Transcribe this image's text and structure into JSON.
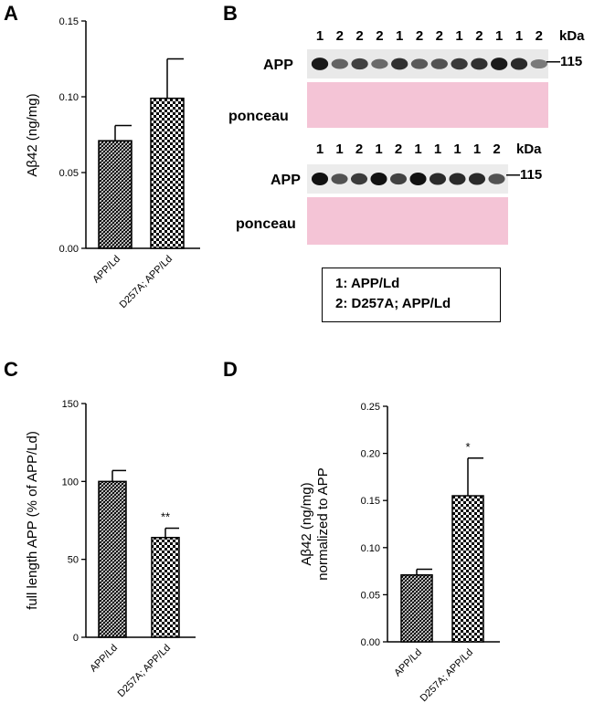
{
  "panels": {
    "a": {
      "letter": "A"
    },
    "b": {
      "letter": "B"
    },
    "c": {
      "letter": "C"
    },
    "d": {
      "letter": "D"
    }
  },
  "blot": {
    "kda": "kDa",
    "marker": "—115",
    "app_label": "APP",
    "ponceau_label": "ponceau",
    "upper_lanes": [
      "1",
      "2",
      "2",
      "2",
      "1",
      "2",
      "2",
      "1",
      "2",
      "1",
      "1",
      "2"
    ],
    "lower_lanes": [
      "1",
      "1",
      "2",
      "1",
      "2",
      "1",
      "1",
      "1",
      "1",
      "2"
    ],
    "upper_band_intensity": [
      0.95,
      0.5,
      0.7,
      0.45,
      0.8,
      0.55,
      0.6,
      0.75,
      0.8,
      0.95,
      0.85,
      0.35
    ],
    "lower_band_intensity": [
      1.0,
      0.6,
      0.75,
      1.0,
      0.7,
      1.0,
      0.85,
      0.85,
      0.85,
      0.6
    ],
    "colors": {
      "ponceau": "#f4c4d6",
      "band": "#111111"
    }
  },
  "legend": {
    "line1": "1: APP/Ld",
    "line2": "2: D257A; APP/Ld"
  },
  "chart_data": [
    {
      "id": "a",
      "type": "bar",
      "categories": [
        "APP/Ld",
        "D257A; APP/Ld"
      ],
      "values": [
        0.071,
        0.099
      ],
      "errors": [
        0.01,
        0.026
      ],
      "ylabel": "Aβ42 (ng/mg)",
      "ylim": [
        0,
        0.15
      ],
      "yticks": [
        "0.00",
        "0.05",
        "0.10",
        "0.15"
      ],
      "significance": [
        "",
        ""
      ]
    },
    {
      "id": "c",
      "type": "bar",
      "categories": [
        "APP/Ld",
        "D257A; APP/Ld"
      ],
      "values": [
        100,
        64
      ],
      "errors": [
        7,
        6
      ],
      "ylabel": "full length APP (% of APP/Ld)",
      "ylim": [
        0,
        150
      ],
      "yticks": [
        "0",
        "50",
        "100",
        "150"
      ],
      "significance": [
        "",
        "**"
      ]
    },
    {
      "id": "d",
      "type": "bar",
      "categories": [
        "APP/Ld",
        "D257A; APP/Ld"
      ],
      "values": [
        0.071,
        0.155
      ],
      "errors": [
        0.006,
        0.04
      ],
      "ylabel": "Aβ42 (ng/mg)",
      "ylabel2": "normalized to APP",
      "ylim": [
        0,
        0.25
      ],
      "yticks": [
        "0.00",
        "0.05",
        "0.10",
        "0.15",
        "0.20",
        "0.25"
      ],
      "significance": [
        "",
        "*"
      ]
    }
  ]
}
